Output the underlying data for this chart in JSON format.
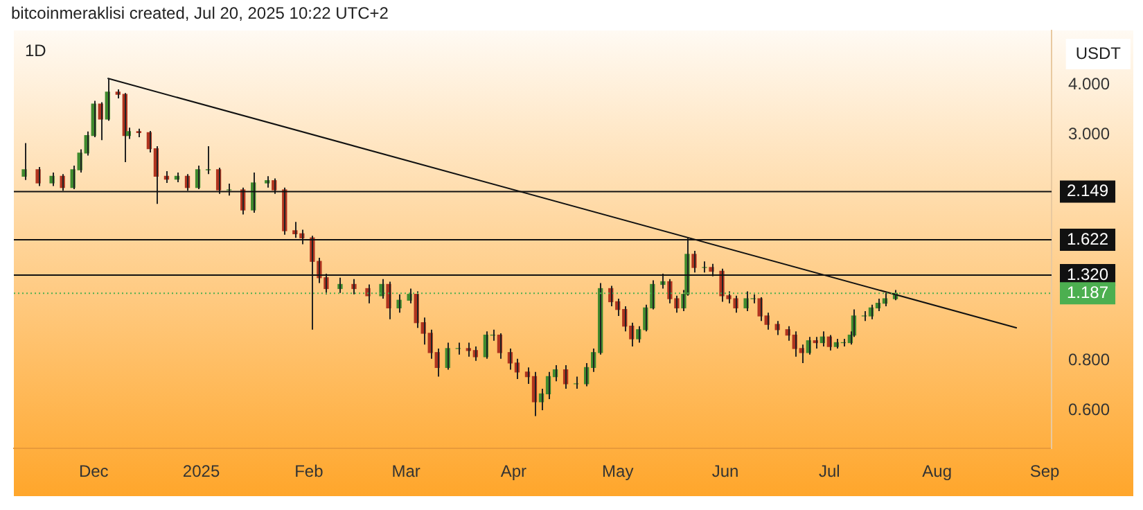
{
  "chart_data": {
    "type": "candlestick",
    "title": "1D",
    "ylabel": "USDT",
    "annotations": [
      "bitcoinmeraklisi created, Jul 20, 2025 10:22 UTC+2"
    ],
    "log": "y",
    "grid": false,
    "legend": false,
    "xlim": [
      "2024-11-08",
      "2025-09-03"
    ],
    "xticks": [
      {
        "value": "2024-12-01",
        "label": "Dec"
      },
      {
        "value": "2025-01-01",
        "label": "2025"
      },
      {
        "value": "2025-02-01",
        "label": "Feb"
      },
      {
        "value": "2025-03-01",
        "label": "Mar"
      },
      {
        "value": "2025-04-01",
        "label": "Apr"
      },
      {
        "value": "2025-05-01",
        "label": "May"
      },
      {
        "value": "2025-06-01",
        "label": "Jun"
      },
      {
        "value": "2025-07-01",
        "label": "Jul"
      },
      {
        "value": "2025-08-01",
        "label": "Aug"
      },
      {
        "value": "2025-09-01",
        "label": "Sep"
      }
    ],
    "ylim": [
      0.48,
      5.5
    ],
    "yticks": [
      {
        "value": 0.6,
        "label": "0.600"
      },
      {
        "value": 0.8,
        "label": "0.800"
      },
      {
        "value": 3,
        "label": "3.000"
      },
      {
        "value": 4,
        "label": "4.000"
      }
    ],
    "ref_lines": [
      {
        "axis": "y",
        "value": 2.149,
        "label": "2.149",
        "color": "#111111",
        "line_style": "solid"
      },
      {
        "axis": "y",
        "value": 1.622,
        "label": "1.622",
        "color": "#111111",
        "line_style": "solid"
      },
      {
        "axis": "y",
        "value": 1.32,
        "label": "1.320",
        "color": "#111111",
        "line_style": "solid"
      },
      {
        "axis": "y",
        "value": 1.187,
        "label": "1.187",
        "color": "#4caf50",
        "line_style": "dotted"
      }
    ],
    "series": [
      {
        "x": [
          "2024-11-11",
          "2024-11-15",
          "2024-11-19",
          "2024-11-22",
          "2024-11-25",
          "2024-11-27",
          "2024-11-29",
          "2024-12-01",
          "2024-12-03",
          "2024-12-05",
          "2024-12-08",
          "2024-12-10",
          "2024-12-11",
          "2024-12-14",
          "2024-12-17",
          "2024-12-19",
          "2024-12-22",
          "2024-12-25",
          "2024-12-28",
          "2024-12-31",
          "2025-01-03",
          "2025-01-06",
          "2025-01-09",
          "2025-01-13",
          "2025-01-16",
          "2025-01-20",
          "2025-01-22",
          "2025-01-25",
          "2025-01-28",
          "2025-01-30",
          "2025-02-02",
          "2025-02-04",
          "2025-02-06",
          "2025-02-10",
          "2025-02-14",
          "2025-02-18",
          "2025-02-22",
          "2025-02-24",
          "2025-02-27",
          "2025-03-02",
          "2025-03-04",
          "2025-03-06",
          "2025-03-08",
          "2025-03-10",
          "2025-03-13",
          "2025-03-16",
          "2025-03-19",
          "2025-03-21",
          "2025-03-24",
          "2025-03-26",
          "2025-03-28",
          "2025-03-31",
          "2025-04-02",
          "2025-04-05",
          "2025-04-07",
          "2025-04-09",
          "2025-04-11",
          "2025-04-13",
          "2025-04-16",
          "2025-04-19",
          "2025-04-22",
          "2025-04-24",
          "2025-04-26",
          "2025-04-29",
          "2025-05-01",
          "2025-05-03",
          "2025-05-05",
          "2025-05-07",
          "2025-05-09",
          "2025-05-11",
          "2025-05-14",
          "2025-05-16",
          "2025-05-18",
          "2025-05-20",
          "2025-05-21",
          "2025-05-23",
          "2025-05-26",
          "2025-05-28",
          "2025-05-31",
          "2025-06-02",
          "2025-06-04",
          "2025-06-07",
          "2025-06-09",
          "2025-06-11",
          "2025-06-13",
          "2025-06-16",
          "2025-06-19",
          "2025-06-21",
          "2025-06-23",
          "2025-06-25",
          "2025-06-27",
          "2025-06-29",
          "2025-07-01",
          "2025-07-03",
          "2025-07-05",
          "2025-07-07",
          "2025-07-08",
          "2025-07-11",
          "2025-07-13",
          "2025-07-15",
          "2025-07-17",
          "2025-07-20"
        ],
        "ohlc": [
          [
            2.35,
            2.85,
            2.3,
            2.44
          ],
          [
            2.44,
            2.48,
            2.22,
            2.26
          ],
          [
            2.26,
            2.4,
            2.22,
            2.35
          ],
          [
            2.35,
            2.38,
            2.16,
            2.2
          ],
          [
            2.2,
            2.5,
            2.18,
            2.44
          ],
          [
            2.44,
            2.75,
            2.4,
            2.69
          ],
          [
            2.69,
            3.05,
            2.65,
            2.98
          ],
          [
            2.98,
            3.65,
            2.95,
            3.58
          ],
          [
            3.58,
            3.62,
            2.9,
            3.28
          ],
          [
            3.28,
            4.16,
            3.25,
            3.84
          ],
          [
            3.84,
            3.9,
            3.7,
            3.79
          ],
          [
            3.79,
            3.82,
            2.55,
            2.98
          ],
          [
            2.98,
            3.12,
            2.92,
            3.05
          ],
          [
            3.05,
            3.1,
            2.95,
            3.03
          ],
          [
            3.03,
            3.06,
            2.7,
            2.76
          ],
          [
            2.76,
            2.8,
            2.0,
            2.35
          ],
          [
            2.35,
            2.42,
            2.26,
            2.31
          ],
          [
            2.31,
            2.4,
            2.27,
            2.35
          ],
          [
            2.35,
            2.38,
            2.16,
            2.2
          ],
          [
            2.2,
            2.5,
            2.18,
            2.44
          ],
          [
            2.44,
            2.8,
            2.38,
            2.44
          ],
          [
            2.44,
            2.47,
            2.12,
            2.17
          ],
          [
            2.17,
            2.25,
            2.1,
            2.17
          ],
          [
            2.17,
            2.2,
            1.88,
            1.93
          ],
          [
            1.93,
            2.4,
            1.9,
            2.26
          ],
          [
            2.26,
            2.35,
            2.2,
            2.29
          ],
          [
            2.29,
            2.32,
            2.12,
            2.17
          ],
          [
            2.17,
            2.2,
            1.67,
            1.71
          ],
          [
            1.71,
            1.8,
            1.64,
            1.68
          ],
          [
            1.68,
            1.72,
            1.58,
            1.64
          ],
          [
            1.64,
            1.66,
            0.96,
            1.43
          ],
          [
            1.43,
            1.46,
            1.26,
            1.3
          ],
          [
            1.3,
            1.33,
            1.18,
            1.22
          ],
          [
            1.22,
            1.3,
            1.19,
            1.25
          ],
          [
            1.25,
            1.29,
            1.18,
            1.22
          ],
          [
            1.22,
            1.25,
            1.12,
            1.17
          ],
          [
            1.17,
            1.29,
            1.15,
            1.25
          ],
          [
            1.25,
            1.27,
            1.02,
            1.09
          ],
          [
            1.09,
            1.18,
            1.06,
            1.14
          ],
          [
            1.14,
            1.22,
            1.12,
            1.18
          ],
          [
            1.18,
            1.2,
            0.97,
            1.0
          ],
          [
            1.0,
            1.03,
            0.88,
            0.94
          ],
          [
            0.94,
            0.96,
            0.81,
            0.84
          ],
          [
            0.84,
            0.86,
            0.73,
            0.77
          ],
          [
            0.77,
            0.89,
            0.76,
            0.86
          ],
          [
            0.86,
            0.89,
            0.83,
            0.86
          ],
          [
            0.86,
            0.89,
            0.82,
            0.85
          ],
          [
            0.85,
            0.87,
            0.8,
            0.82
          ],
          [
            0.82,
            0.95,
            0.81,
            0.93
          ],
          [
            0.93,
            0.96,
            0.9,
            0.93
          ],
          [
            0.93,
            0.94,
            0.81,
            0.84
          ],
          [
            0.84,
            0.86,
            0.76,
            0.79
          ],
          [
            0.79,
            0.81,
            0.72,
            0.75
          ],
          [
            0.75,
            0.77,
            0.7,
            0.73
          ],
          [
            0.73,
            0.75,
            0.58,
            0.63
          ],
          [
            0.63,
            0.68,
            0.6,
            0.66
          ],
          [
            0.66,
            0.75,
            0.64,
            0.73
          ],
          [
            0.73,
            0.78,
            0.71,
            0.76
          ],
          [
            0.76,
            0.78,
            0.68,
            0.7
          ],
          [
            0.7,
            0.73,
            0.68,
            0.7
          ],
          [
            0.7,
            0.79,
            0.69,
            0.77
          ],
          [
            0.77,
            0.86,
            0.75,
            0.84
          ],
          [
            0.84,
            1.26,
            0.83,
            1.22
          ],
          [
            1.22,
            1.24,
            1.1,
            1.13
          ],
          [
            1.13,
            1.15,
            1.04,
            1.08
          ],
          [
            1.08,
            1.1,
            0.95,
            0.98
          ],
          [
            0.98,
            1.0,
            0.87,
            0.91
          ],
          [
            0.91,
            0.98,
            0.89,
            0.96
          ],
          [
            0.96,
            1.11,
            0.95,
            1.09
          ],
          [
            1.09,
            1.28,
            1.08,
            1.25
          ],
          [
            1.25,
            1.33,
            1.22,
            1.27
          ],
          [
            1.27,
            1.29,
            1.12,
            1.15
          ],
          [
            1.15,
            1.17,
            1.06,
            1.09
          ],
          [
            1.09,
            1.21,
            1.07,
            1.18
          ],
          [
            1.18,
            1.64,
            1.17,
            1.49
          ],
          [
            1.49,
            1.52,
            1.34,
            1.38
          ],
          [
            1.38,
            1.43,
            1.34,
            1.38
          ],
          [
            1.38,
            1.41,
            1.31,
            1.35
          ],
          [
            1.35,
            1.37,
            1.13,
            1.17
          ],
          [
            1.17,
            1.2,
            1.12,
            1.15
          ],
          [
            1.15,
            1.17,
            1.06,
            1.09
          ],
          [
            1.09,
            1.2,
            1.07,
            1.15
          ],
          [
            1.15,
            1.18,
            1.12,
            1.15
          ],
          [
            1.15,
            1.16,
            1.01,
            1.04
          ],
          [
            1.04,
            1.06,
            0.96,
            0.99
          ],
          [
            0.99,
            1.01,
            0.93,
            0.96
          ],
          [
            0.96,
            0.98,
            0.9,
            0.93
          ],
          [
            0.93,
            0.95,
            0.82,
            0.86
          ],
          [
            0.86,
            0.88,
            0.79,
            0.84
          ],
          [
            0.84,
            0.92,
            0.83,
            0.9
          ],
          [
            0.9,
            0.92,
            0.86,
            0.89
          ],
          [
            0.89,
            0.95,
            0.87,
            0.92
          ],
          [
            0.92,
            0.93,
            0.85,
            0.87
          ],
          [
            0.87,
            0.91,
            0.86,
            0.89
          ],
          [
            0.89,
            0.91,
            0.87,
            0.89
          ],
          [
            0.89,
            0.95,
            0.88,
            0.93
          ],
          [
            0.93,
            1.08,
            0.92,
            1.04
          ],
          [
            1.04,
            1.07,
            1.01,
            1.04
          ],
          [
            1.04,
            1.11,
            1.02,
            1.09
          ],
          [
            1.09,
            1.15,
            1.07,
            1.12
          ],
          [
            1.12,
            1.19,
            1.1,
            1.15
          ],
          [
            1.15,
            1.21,
            1.14,
            1.187
          ]
        ]
      },
      {
        "type": "line",
        "color": "#111111",
        "x": [
          "2024-12-05",
          "2025-08-24"
        ],
        "values": [
          4.16,
          0.97
        ]
      }
    ]
  }
}
